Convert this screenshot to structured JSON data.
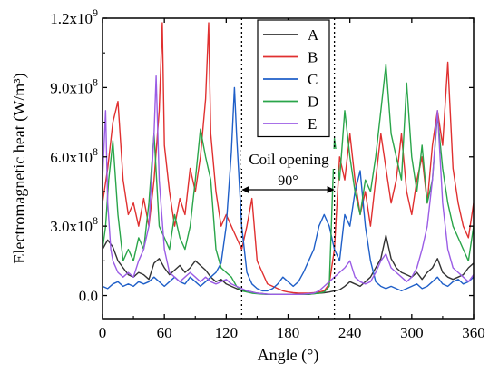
{
  "chart_data": {
    "type": "line",
    "xlabel": "Angle (°)",
    "ylabel": "Electromagnetic heat (W/m³)",
    "xlim": [
      0,
      360
    ],
    "ylim": [
      -100000000,
      1200000000
    ],
    "x_ticks": [
      0,
      60,
      120,
      180,
      240,
      300,
      360
    ],
    "x_tick_labels": [
      "0",
      "60",
      "120",
      "180",
      "240",
      "300",
      "360"
    ],
    "y_ticks": [
      0,
      300000000,
      600000000,
      900000000,
      1200000000
    ],
    "y_tick_labels": [
      {
        "mant": "0.0",
        "exp": ""
      },
      {
        "mant": "3.0x10",
        "exp": "8"
      },
      {
        "mant": "6.0x10",
        "exp": "8"
      },
      {
        "mant": "9.0x10",
        "exp": "8"
      },
      {
        "mant": "1.2x10",
        "exp": "9"
      }
    ],
    "grid": false,
    "legend_position": "top-center",
    "annotations": {
      "coil_opening_label": "Coil opening",
      "span_label": "90°",
      "dotted_lines_x": [
        135,
        225
      ]
    },
    "series": [
      {
        "name": "A",
        "color": "#333333",
        "x": [
          0,
          5,
          10,
          15,
          20,
          25,
          30,
          35,
          40,
          45,
          50,
          55,
          60,
          65,
          70,
          75,
          80,
          85,
          90,
          95,
          100,
          105,
          110,
          115,
          120,
          125,
          130,
          135,
          140,
          145,
          150,
          155,
          160,
          165,
          170,
          175,
          180,
          185,
          190,
          195,
          200,
          205,
          210,
          215,
          220,
          225,
          230,
          235,
          240,
          245,
          250,
          255,
          260,
          265,
          270,
          275,
          280,
          285,
          290,
          295,
          300,
          305,
          310,
          315,
          320,
          325,
          330,
          335,
          340,
          345,
          350,
          355,
          360
        ],
        "y": [
          200000000,
          240000000,
          210000000,
          150000000,
          120000000,
          90000000,
          80000000,
          100000000,
          90000000,
          70000000,
          140000000,
          160000000,
          120000000,
          90000000,
          110000000,
          130000000,
          100000000,
          120000000,
          150000000,
          130000000,
          110000000,
          80000000,
          60000000,
          70000000,
          50000000,
          40000000,
          30000000,
          20000000,
          20000000,
          15000000,
          10000000,
          8000000,
          5000000,
          5000000,
          5000000,
          5000000,
          5000000,
          5000000,
          5000000,
          5000000,
          5000000,
          8000000,
          10000000,
          12000000,
          15000000,
          20000000,
          25000000,
          40000000,
          60000000,
          50000000,
          40000000,
          60000000,
          80000000,
          120000000,
          160000000,
          260000000,
          160000000,
          120000000,
          100000000,
          90000000,
          80000000,
          100000000,
          70000000,
          100000000,
          120000000,
          160000000,
          100000000,
          80000000,
          70000000,
          80000000,
          90000000,
          120000000,
          140000000
        ]
      },
      {
        "name": "B",
        "color": "#e03030",
        "x": [
          0,
          5,
          10,
          15,
          20,
          25,
          30,
          35,
          40,
          45,
          50,
          55,
          58,
          60,
          65,
          70,
          75,
          80,
          85,
          90,
          95,
          100,
          103,
          105,
          110,
          115,
          120,
          125,
          130,
          135,
          140,
          145,
          150,
          155,
          160,
          165,
          170,
          175,
          180,
          185,
          190,
          195,
          200,
          205,
          210,
          215,
          220,
          225,
          230,
          235,
          240,
          245,
          250,
          255,
          260,
          265,
          270,
          275,
          280,
          285,
          290,
          295,
          300,
          305,
          310,
          315,
          320,
          325,
          330,
          335,
          340,
          345,
          350,
          355,
          360
        ],
        "y": [
          400000000,
          550000000,
          750000000,
          840000000,
          500000000,
          350000000,
          400000000,
          300000000,
          420000000,
          300000000,
          500000000,
          800000000,
          1180000000,
          650000000,
          450000000,
          300000000,
          420000000,
          350000000,
          550000000,
          450000000,
          600000000,
          850000000,
          1180000000,
          700000000,
          450000000,
          300000000,
          350000000,
          300000000,
          250000000,
          200000000,
          300000000,
          420000000,
          150000000,
          100000000,
          50000000,
          40000000,
          30000000,
          20000000,
          15000000,
          12000000,
          10000000,
          10000000,
          10000000,
          12000000,
          15000000,
          20000000,
          50000000,
          200000000,
          600000000,
          500000000,
          700000000,
          500000000,
          350000000,
          450000000,
          300000000,
          500000000,
          700000000,
          550000000,
          400000000,
          500000000,
          700000000,
          450000000,
          350000000,
          500000000,
          600000000,
          400000000,
          650000000,
          800000000,
          650000000,
          1010000000,
          550000000,
          400000000,
          300000000,
          250000000,
          400000000
        ]
      },
      {
        "name": "C",
        "color": "#1f5fc8",
        "x": [
          0,
          5,
          10,
          15,
          20,
          25,
          30,
          35,
          40,
          45,
          50,
          55,
          60,
          65,
          70,
          75,
          80,
          85,
          90,
          95,
          100,
          105,
          110,
          115,
          120,
          125,
          128,
          130,
          135,
          140,
          145,
          150,
          155,
          160,
          165,
          170,
          175,
          180,
          185,
          190,
          195,
          200,
          205,
          210,
          215,
          220,
          225,
          230,
          235,
          240,
          245,
          250,
          255,
          260,
          265,
          270,
          275,
          280,
          285,
          290,
          295,
          300,
          305,
          310,
          315,
          320,
          325,
          330,
          335,
          340,
          345,
          350,
          355,
          360
        ],
        "y": [
          40000000,
          30000000,
          50000000,
          60000000,
          40000000,
          50000000,
          40000000,
          60000000,
          50000000,
          60000000,
          80000000,
          60000000,
          40000000,
          60000000,
          80000000,
          60000000,
          50000000,
          80000000,
          60000000,
          40000000,
          60000000,
          80000000,
          100000000,
          140000000,
          300000000,
          620000000,
          900000000,
          700000000,
          300000000,
          100000000,
          50000000,
          30000000,
          20000000,
          20000000,
          30000000,
          50000000,
          80000000,
          60000000,
          40000000,
          60000000,
          100000000,
          150000000,
          200000000,
          300000000,
          350000000,
          300000000,
          200000000,
          150000000,
          350000000,
          300000000,
          450000000,
          540000000,
          300000000,
          150000000,
          60000000,
          40000000,
          30000000,
          40000000,
          30000000,
          20000000,
          30000000,
          40000000,
          50000000,
          30000000,
          40000000,
          60000000,
          80000000,
          50000000,
          40000000,
          60000000,
          70000000,
          50000000,
          60000000,
          80000000
        ]
      },
      {
        "name": "D",
        "color": "#2aa54a",
        "x": [
          0,
          3,
          6,
          10,
          15,
          20,
          25,
          30,
          35,
          40,
          45,
          50,
          55,
          60,
          65,
          70,
          75,
          80,
          85,
          90,
          95,
          100,
          105,
          110,
          115,
          120,
          125,
          130,
          135,
          140,
          145,
          150,
          155,
          160,
          165,
          170,
          175,
          180,
          185,
          190,
          195,
          200,
          205,
          210,
          215,
          220,
          225,
          230,
          235,
          240,
          245,
          250,
          255,
          260,
          265,
          270,
          275,
          280,
          285,
          290,
          295,
          300,
          305,
          310,
          315,
          320,
          325,
          330,
          335,
          340,
          345,
          350,
          355,
          360
        ],
        "y": [
          200000000,
          300000000,
          500000000,
          670000000,
          350000000,
          150000000,
          200000000,
          150000000,
          250000000,
          200000000,
          400000000,
          700000000,
          300000000,
          250000000,
          200000000,
          350000000,
          250000000,
          200000000,
          300000000,
          500000000,
          720000000,
          600000000,
          500000000,
          200000000,
          120000000,
          100000000,
          80000000,
          40000000,
          20000000,
          15000000,
          10000000,
          8000000,
          6000000,
          5000000,
          5000000,
          5000000,
          5000000,
          5000000,
          5000000,
          5000000,
          5000000,
          6000000,
          8000000,
          10000000,
          15000000,
          40000000,
          680000000,
          500000000,
          800000000,
          600000000,
          450000000,
          350000000,
          500000000,
          450000000,
          600000000,
          800000000,
          1000000000,
          700000000,
          600000000,
          500000000,
          920000000,
          600000000,
          450000000,
          650000000,
          400000000,
          500000000,
          780000000,
          550000000,
          400000000,
          300000000,
          250000000,
          200000000,
          150000000,
          300000000
        ]
      },
      {
        "name": "E",
        "color": "#9b5de5",
        "x": [
          0,
          3,
          5,
          8,
          10,
          15,
          20,
          25,
          30,
          35,
          40,
          45,
          50,
          52,
          55,
          60,
          65,
          70,
          75,
          80,
          85,
          90,
          95,
          100,
          105,
          110,
          115,
          120,
          125,
          130,
          135,
          140,
          145,
          150,
          155,
          160,
          165,
          170,
          175,
          180,
          185,
          190,
          195,
          200,
          205,
          210,
          215,
          220,
          225,
          230,
          235,
          240,
          245,
          250,
          255,
          260,
          265,
          270,
          275,
          280,
          285,
          290,
          295,
          300,
          305,
          310,
          315,
          320,
          325,
          330,
          335,
          340,
          345,
          350,
          355,
          360
        ],
        "y": [
          500000000,
          800000000,
          400000000,
          200000000,
          150000000,
          100000000,
          80000000,
          100000000,
          80000000,
          150000000,
          200000000,
          300000000,
          700000000,
          950000000,
          500000000,
          200000000,
          100000000,
          80000000,
          60000000,
          80000000,
          100000000,
          80000000,
          60000000,
          80000000,
          60000000,
          50000000,
          60000000,
          70000000,
          50000000,
          40000000,
          30000000,
          20000000,
          15000000,
          10000000,
          8000000,
          6000000,
          5000000,
          5000000,
          5000000,
          5000000,
          5000000,
          5000000,
          6000000,
          8000000,
          10000000,
          20000000,
          40000000,
          60000000,
          80000000,
          100000000,
          120000000,
          150000000,
          80000000,
          60000000,
          50000000,
          60000000,
          100000000,
          150000000,
          180000000,
          120000000,
          100000000,
          80000000,
          60000000,
          80000000,
          120000000,
          200000000,
          300000000,
          500000000,
          800000000,
          400000000,
          200000000,
          120000000,
          100000000,
          80000000,
          60000000,
          90000000
        ]
      }
    ]
  }
}
